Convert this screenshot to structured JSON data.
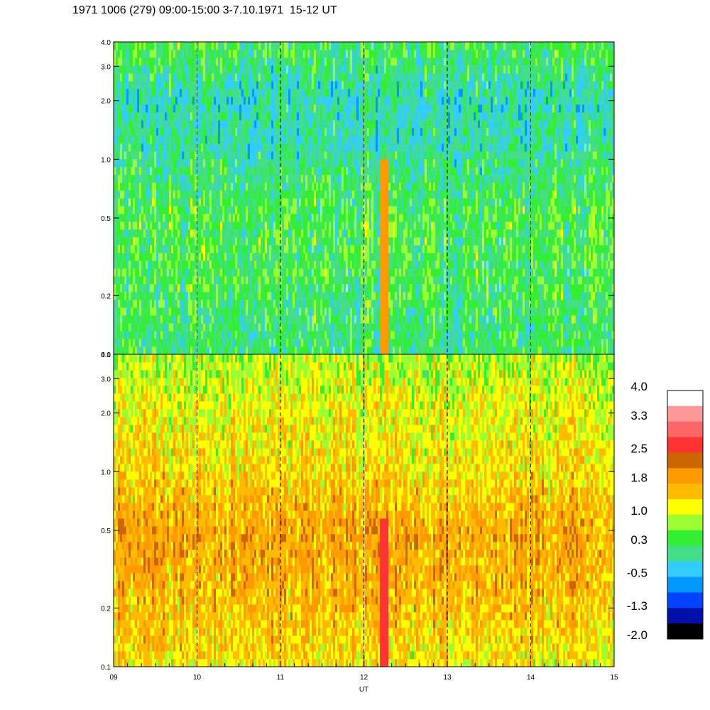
{
  "title": "1971 1006 (279) 09:00-15:00 3-7.10.1971  15-12 UT",
  "chart_data": {
    "type": "heatmap",
    "xlabel": "UT",
    "x_ticks": [
      "09",
      "10",
      "11",
      "12",
      "13",
      "14",
      "15"
    ],
    "x_range": [
      9,
      15
    ],
    "y_scale": "log",
    "y_range": [
      0.1,
      4.0
    ],
    "panels": [
      {
        "name": "top",
        "y_ticks": [
          "0.1",
          "0.2",
          "0.5",
          "1.0",
          "2.0",
          "3.0",
          "4.0"
        ],
        "y_tick_values": [
          0.1,
          0.2,
          0.5,
          1.0,
          2.0,
          3.0,
          4.0
        ],
        "dominant_level_by_frequency": [
          {
            "f": 4.0,
            "level": 0.5
          },
          {
            "f": 2.0,
            "level": 0.0
          },
          {
            "f": 1.0,
            "level": 0.2
          },
          {
            "f": 0.5,
            "level": 0.5
          },
          {
            "f": 0.2,
            "level": 0.4
          },
          {
            "f": 0.1,
            "level": 0.3
          }
        ]
      },
      {
        "name": "bottom",
        "y_ticks": [
          "0.1",
          "0.2",
          "0.5",
          "1.0",
          "2.0",
          "3.0",
          "4.0"
        ],
        "y_tick_values": [
          0.1,
          0.2,
          0.5,
          1.0,
          2.0,
          3.0,
          4.0
        ],
        "dominant_level_by_frequency": [
          {
            "f": 4.0,
            "level": 0.9
          },
          {
            "f": 2.0,
            "level": 1.2
          },
          {
            "f": 1.0,
            "level": 1.4
          },
          {
            "f": 0.5,
            "level": 1.8
          },
          {
            "f": 0.2,
            "level": 1.6
          },
          {
            "f": 0.1,
            "level": 1.3
          }
        ]
      }
    ],
    "dashed_vertical_lines_ut": [
      10,
      11,
      12,
      13,
      14
    ],
    "feature": {
      "ut_start": 12.2,
      "ut_end": 12.3,
      "f_max_top": 1.0,
      "f_max_bottom": 0.6
    },
    "colorbar": {
      "labels": [
        "4.0",
        "3.3",
        "2.5",
        "1.8",
        "1.0",
        "0.3",
        "-0.5",
        "-1.3",
        "-2.0"
      ],
      "label_values": [
        4.0,
        3.3,
        2.5,
        1.8,
        1.0,
        0.3,
        -0.5,
        -1.3,
        -2.0
      ],
      "colors": [
        "#ffffff",
        "#ff9999",
        "#ff6666",
        "#ff3333",
        "#cc6600",
        "#ff9900",
        "#ffbb00",
        "#ffff00",
        "#99ff33",
        "#33ee33",
        "#44dd88",
        "#33ccff",
        "#0099ff",
        "#0044ff",
        "#0011aa",
        "#000000"
      ]
    }
  }
}
